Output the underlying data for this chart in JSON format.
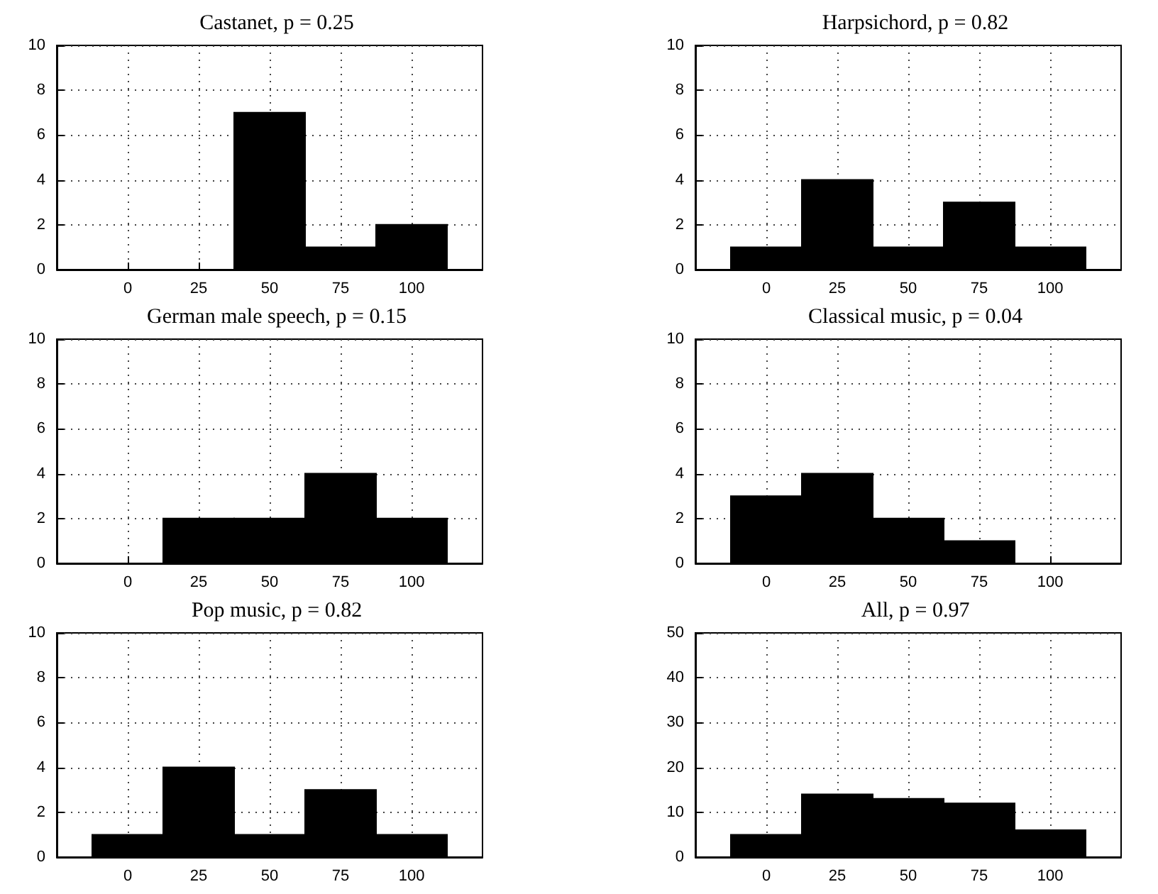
{
  "chart_data": [
    {
      "type": "histogram",
      "title": "Castanet, p = 0.25",
      "bins": [
        -12.5,
        12.5,
        37.5,
        62.5,
        87.5,
        112.5
      ],
      "values": [
        0,
        0,
        7,
        1,
        2
      ],
      "color": "#000000",
      "xlim": [
        -25,
        125
      ],
      "xticks": [
        0,
        25,
        50,
        75,
        100
      ],
      "ylim": [
        0,
        10
      ],
      "yticks": [
        0,
        2,
        4,
        6,
        8,
        10
      ],
      "grid": true
    },
    {
      "type": "histogram",
      "title": "Harpsichord, p = 0.82",
      "bins": [
        -12.5,
        12.5,
        37.5,
        62.5,
        87.5,
        112.5
      ],
      "values": [
        1,
        4,
        1,
        3,
        1
      ],
      "color": "#000000",
      "xlim": [
        -25,
        125
      ],
      "xticks": [
        0,
        25,
        50,
        75,
        100
      ],
      "ylim": [
        0,
        10
      ],
      "yticks": [
        0,
        2,
        4,
        6,
        8,
        10
      ],
      "grid": true
    },
    {
      "type": "histogram",
      "title": "German male speech, p = 0.15",
      "bins": [
        -12.5,
        12.5,
        37.5,
        62.5,
        87.5,
        112.5
      ],
      "values": [
        0,
        2,
        2,
        4,
        2
      ],
      "color": "#000000",
      "xlim": [
        -25,
        125
      ],
      "xticks": [
        0,
        25,
        50,
        75,
        100
      ],
      "ylim": [
        0,
        10
      ],
      "yticks": [
        0,
        2,
        4,
        6,
        8,
        10
      ],
      "grid": true
    },
    {
      "type": "histogram",
      "title": "Classical music, p = 0.04",
      "bins": [
        -12.5,
        12.5,
        37.5,
        62.5,
        87.5,
        112.5
      ],
      "values": [
        3,
        4,
        2,
        1,
        0
      ],
      "color": "#000000",
      "xlim": [
        -25,
        125
      ],
      "xticks": [
        0,
        25,
        50,
        75,
        100
      ],
      "ylim": [
        0,
        10
      ],
      "yticks": [
        0,
        2,
        4,
        6,
        8,
        10
      ],
      "grid": true
    },
    {
      "type": "histogram",
      "title": "Pop music, p = 0.82",
      "bins": [
        -12.5,
        12.5,
        37.5,
        62.5,
        87.5,
        112.5
      ],
      "values": [
        1,
        4,
        1,
        3,
        1
      ],
      "color": "#000000",
      "xlim": [
        -25,
        125
      ],
      "xticks": [
        0,
        25,
        50,
        75,
        100
      ],
      "ylim": [
        0,
        10
      ],
      "yticks": [
        0,
        2,
        4,
        6,
        8,
        10
      ],
      "grid": true
    },
    {
      "type": "histogram",
      "title": "All, p = 0.97",
      "bins": [
        -12.5,
        12.5,
        37.5,
        62.5,
        87.5,
        112.5
      ],
      "values": [
        5,
        14,
        13,
        12,
        6
      ],
      "color": "#000000",
      "xlim": [
        -25,
        125
      ],
      "xticks": [
        0,
        25,
        50,
        75,
        100
      ],
      "ylim": [
        0,
        50
      ],
      "yticks": [
        0,
        10,
        20,
        30,
        40,
        50
      ],
      "grid": true
    }
  ]
}
